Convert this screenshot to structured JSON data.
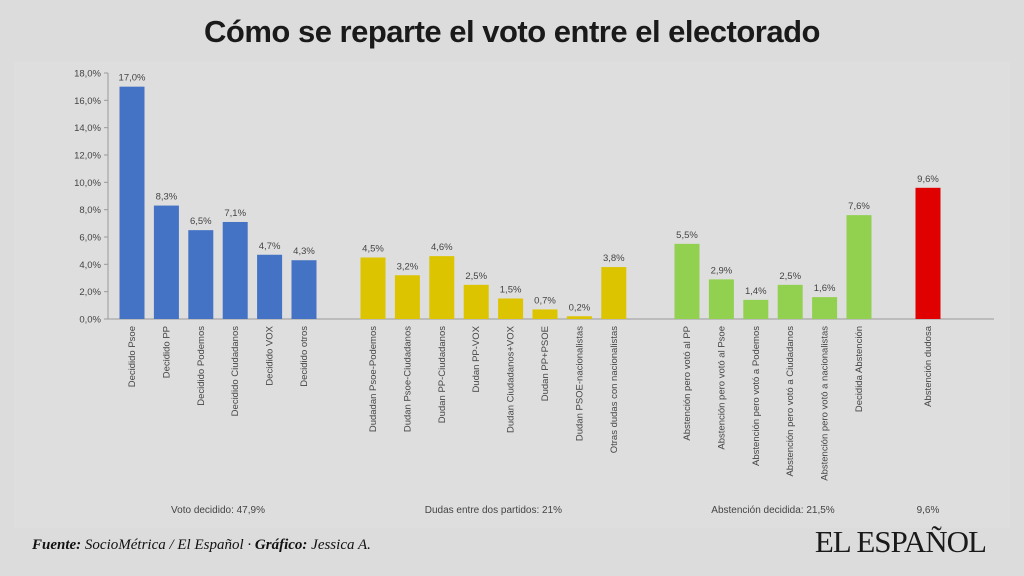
{
  "title": "Cómo se reparte el voto entre el electorado",
  "footer": {
    "source_label": "Fuente:",
    "source_text": "SocioMétrica / El Español ·",
    "graphic_label": "Gráfico:",
    "graphic_text": "Jessica A."
  },
  "logo_text": "EL ESPAÑOL",
  "chart_data": {
    "type": "bar",
    "ylim": [
      0,
      18
    ],
    "yticks": [
      "0,0%",
      "2,0%",
      "4,0%",
      "6,0%",
      "8,0%",
      "10,0%",
      "12,0%",
      "14,0%",
      "16,0%",
      "18,0%"
    ],
    "grid": false,
    "groups": [
      {
        "summary": "Voto decidido: 47,9%",
        "color": "#4472c4",
        "categories": [
          "Decidido Psoe",
          "Decidido PP",
          "Decidido Podemos",
          "Decidido Ciudadanos",
          "Decidido VOX",
          "Decidido otros"
        ],
        "values": [
          17.0,
          8.3,
          6.5,
          7.1,
          4.7,
          4.3
        ],
        "labels": [
          "17,0%",
          "8,3%",
          "6,5%",
          "7,1%",
          "4,7%",
          "4,3%"
        ]
      },
      {
        "summary": "Dudas entre dos partidos: 21%",
        "color": "#dcc400",
        "categories": [
          "Dudadan Psoe-Podemos",
          "Dudan Psoe-Ciudadanos",
          "Dudan PP-Ciudadanos",
          "Dudan PP-VOX",
          "Dudan Ciudadanos+VOX",
          "Dudan PP+PSOE",
          "Dudan PSOE-nacionalistas",
          "Otras dudas con nacionalistas"
        ],
        "values": [
          4.5,
          3.2,
          4.6,
          2.5,
          1.5,
          0.7,
          0.2,
          3.8
        ],
        "labels": [
          "4,5%",
          "3,2%",
          "4,6%",
          "2,5%",
          "1,5%",
          "0,7%",
          "0,2%",
          "3,8%"
        ]
      },
      {
        "summary": "Abstención decidida: 21,5%",
        "color": "#92d050",
        "categories": [
          "Abstención pero votó al PP",
          "Abstención pero votó al Psoe",
          "Abstención pero votó a Podemos",
          "Abstención pero votó a Ciudadanos",
          "Abstención pero votó a nacionalistas",
          "Decidida Abstención"
        ],
        "values": [
          5.5,
          2.9,
          1.4,
          2.5,
          1.6,
          7.6
        ],
        "labels": [
          "5,5%",
          "2,9%",
          "1,4%",
          "2,5%",
          "1,6%",
          "7,6%"
        ]
      },
      {
        "summary": "9,6%",
        "color": "#e00000",
        "categories": [
          "Abstención dudosa"
        ],
        "values": [
          9.6
        ],
        "labels": [
          "9,6%"
        ]
      }
    ]
  }
}
